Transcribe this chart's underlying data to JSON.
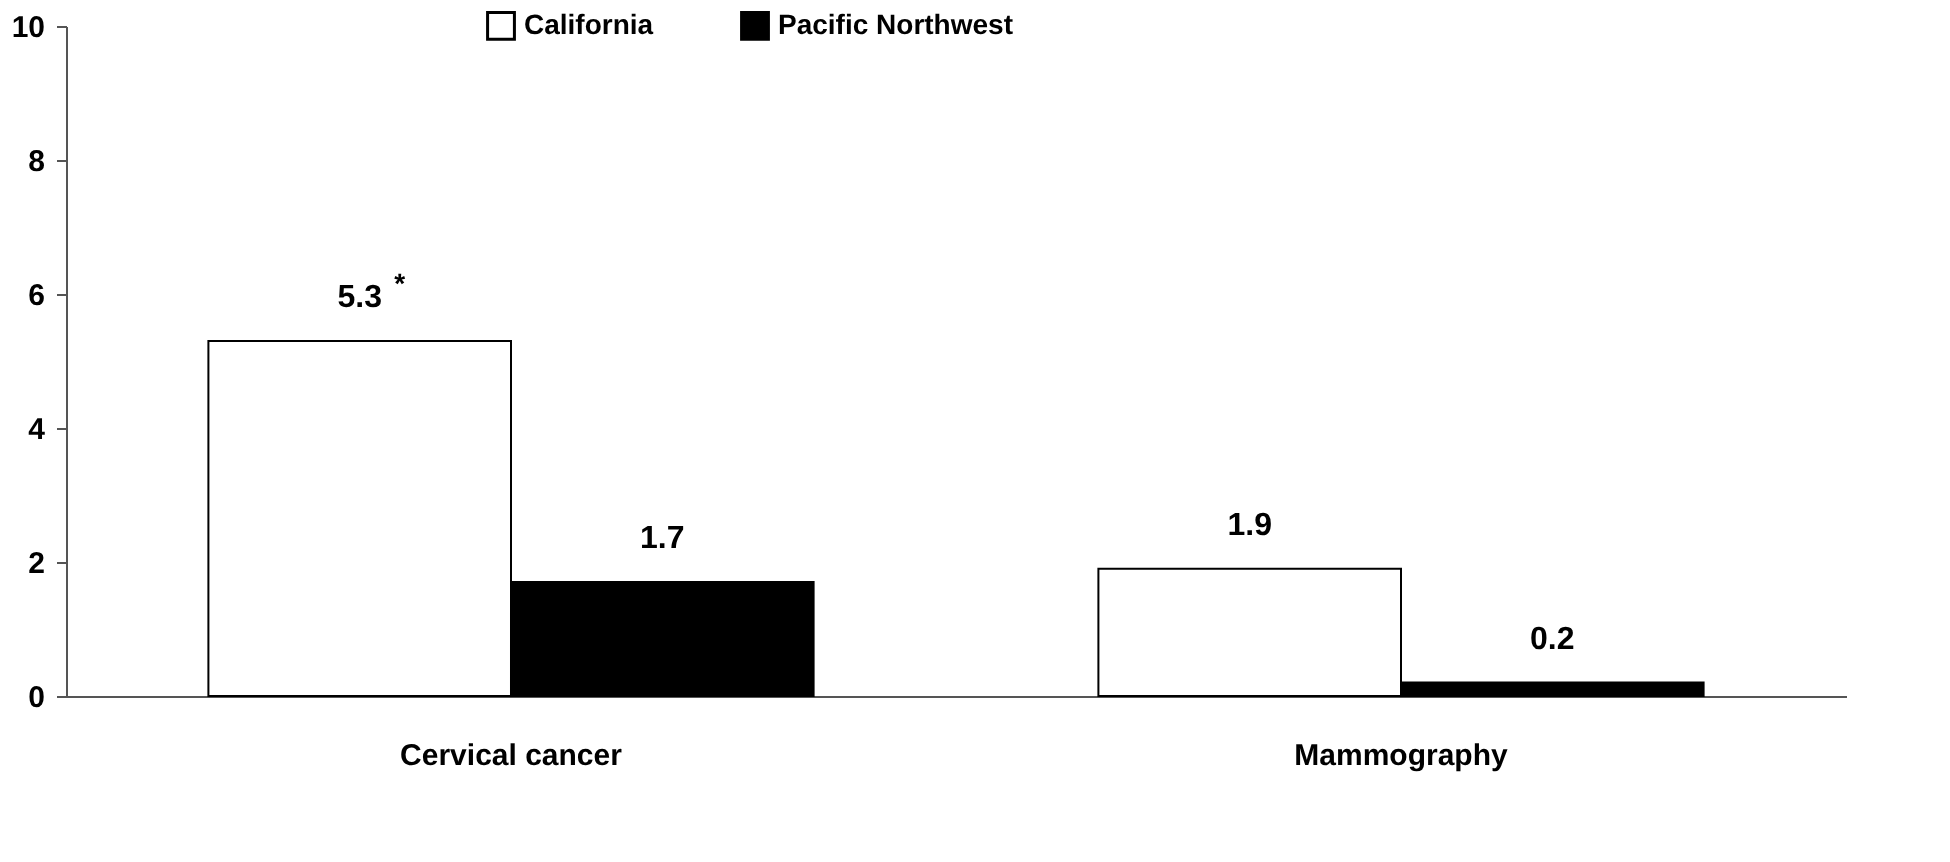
{
  "chart_data": {
    "type": "bar",
    "categories": [
      "Cervical cancer",
      "Mammography"
    ],
    "series": [
      {
        "name": "California",
        "color": "#ffffff",
        "values": [
          5.3,
          1.9
        ]
      },
      {
        "name": "Pacific Northwest",
        "color": "#000000",
        "values": [
          1.7,
          0.2
        ]
      }
    ],
    "ylim": [
      0,
      10
    ],
    "yticks": [
      0,
      2,
      4,
      6,
      8,
      10
    ],
    "data_labels": true,
    "grid": false,
    "legend": "top",
    "annotations": [
      "*"
    ]
  }
}
